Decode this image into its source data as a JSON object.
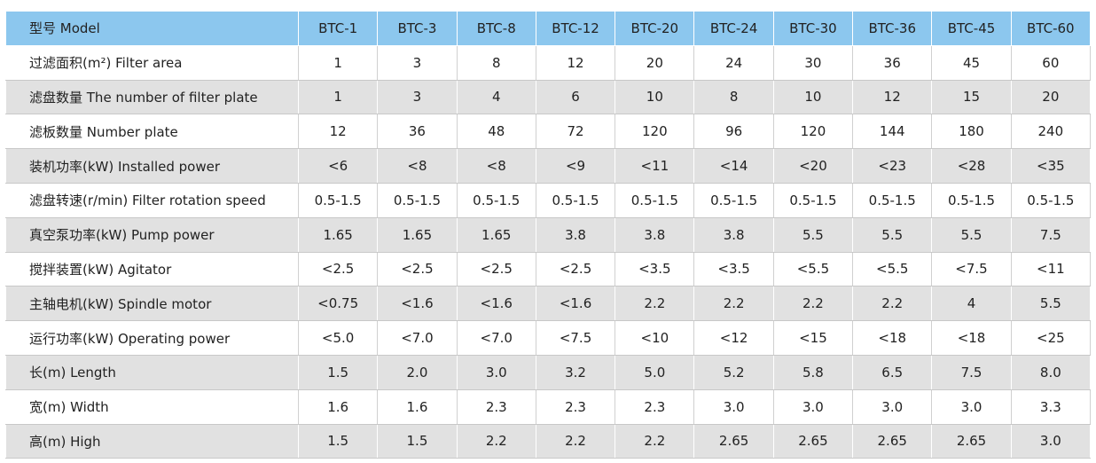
{
  "header": {
    "label": "型号 Model",
    "models": [
      "BTC-1",
      "BTC-3",
      "BTC-8",
      "BTC-12",
      "BTC-20",
      "BTC-24",
      "BTC-30",
      "BTC-36",
      "BTC-45",
      "BTC-60"
    ]
  },
  "rows": [
    {
      "label": "过滤面积(m²) Filter area",
      "values": [
        "1",
        "3",
        "8",
        "12",
        "20",
        "24",
        "30",
        "36",
        "45",
        "60"
      ]
    },
    {
      "label": "滤盘数量 The number of filter plate",
      "values": [
        "1",
        "3",
        "4",
        "6",
        "10",
        "8",
        "10",
        "12",
        "15",
        "20"
      ]
    },
    {
      "label": "滤板数量 Number plate",
      "values": [
        "12",
        "36",
        "48",
        "72",
        "120",
        "96",
        "120",
        "144",
        "180",
        "240"
      ]
    },
    {
      "label": "装机功率(kW) Installed power",
      "values": [
        "<6",
        "<8",
        "<8",
        "<9",
        "<11",
        "<14",
        "<20",
        "<23",
        "<28",
        "<35"
      ]
    },
    {
      "label": "滤盘转速(r/min) Filter rotation speed",
      "values": [
        "0.5-1.5",
        "0.5-1.5",
        "0.5-1.5",
        "0.5-1.5",
        "0.5-1.5",
        "0.5-1.5",
        "0.5-1.5",
        "0.5-1.5",
        "0.5-1.5",
        "0.5-1.5"
      ]
    },
    {
      "label": "真空泵功率(kW) Pump power",
      "values": [
        "1.65",
        "1.65",
        "1.65",
        "3.8",
        "3.8",
        "3.8",
        "5.5",
        "5.5",
        "5.5",
        "7.5"
      ]
    },
    {
      "label": "搅拌装置(kW) Agitator",
      "values": [
        "<2.5",
        "<2.5",
        "<2.5",
        "<2.5",
        "<3.5",
        "<3.5",
        "<5.5",
        "<5.5",
        "<7.5",
        "<11"
      ]
    },
    {
      "label": "主轴电机(kW) Spindle motor",
      "values": [
        "<0.75",
        "<1.6",
        "<1.6",
        "<1.6",
        "2.2",
        "2.2",
        "2.2",
        "2.2",
        "4",
        "5.5"
      ]
    },
    {
      "label": "运行功率(kW) Operating power",
      "values": [
        "<5.0",
        "<7.0",
        "<7.0",
        "<7.5",
        "<10",
        "<12",
        "<15",
        "<18",
        "<18",
        "<25"
      ]
    },
    {
      "label": "长(m) Length",
      "values": [
        "1.5",
        "2.0",
        "3.0",
        "3.2",
        "5.0",
        "5.2",
        "5.8",
        "6.5",
        "7.5",
        "8.0"
      ]
    },
    {
      "label": "宽(m) Width",
      "values": [
        "1.6",
        "1.6",
        "2.3",
        "2.3",
        "2.3",
        "3.0",
        "3.0",
        "3.0",
        "3.0",
        "3.3"
      ]
    },
    {
      "label": "高(m) High",
      "values": [
        "1.5",
        "1.5",
        "2.2",
        "2.2",
        "2.2",
        "2.65",
        "2.65",
        "2.65",
        "2.65",
        "3.0"
      ]
    }
  ],
  "colors": {
    "header_bg": "#8cc7ee",
    "row_alt_bg": "#e1e1e1",
    "row_bg": "#ffffff"
  }
}
